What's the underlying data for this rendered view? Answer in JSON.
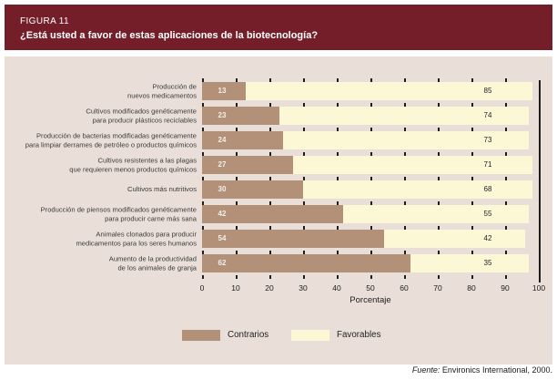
{
  "header": {
    "figure_label": "FIGURA 11",
    "title": "¿Está usted a favor de estas aplicaciones de la biotecnología?"
  },
  "chart_data": {
    "type": "bar",
    "orientation": "horizontal-stacked",
    "title": "¿Está usted a favor de estas aplicaciones de la biotecnología?",
    "categories": [
      [
        "Producción de",
        "nuevos medicamentos"
      ],
      [
        "Cultivos modificados genéticamente",
        "para producir plásticos reciclables"
      ],
      [
        "Producción de bacterias modificadas genéticamente",
        "para limpiar derrames de petróleo o productos químicos"
      ],
      [
        "Cultivos resistentes a las plagas",
        "que requieren menos productos químicos"
      ],
      [
        "Cultivos más nutritivos"
      ],
      [
        "Producción de piensos modificados genéticamente",
        "para producir carne más sana"
      ],
      [
        "Animales clonados para producir",
        "medicamentos para los seres humanos"
      ],
      [
        "Aumento de la productividad",
        "de los animales de granja"
      ]
    ],
    "series": [
      {
        "name": "Contrarios",
        "color": "#b39179",
        "values": [
          13,
          23,
          24,
          27,
          30,
          42,
          54,
          62
        ]
      },
      {
        "name": "Favorables",
        "color": "#fcf8d6",
        "values": [
          85,
          74,
          73,
          71,
          68,
          55,
          42,
          35
        ]
      }
    ],
    "xlabel": "Porcentaje",
    "xlim": [
      0,
      100
    ],
    "tick_labels": [
      "0",
      "10",
      "20",
      "30",
      "40",
      "50",
      "60",
      "70",
      "80",
      "90",
      "100"
    ],
    "grid": "dashed-vertical-every-10",
    "legend_position": "bottom"
  },
  "legend": {
    "items": [
      {
        "label": "Contrarios",
        "color": "#b39179"
      },
      {
        "label": "Favorables",
        "color": "#fcf8d6"
      }
    ]
  },
  "footer": {
    "source_label": "Fuente:",
    "source_text": "Environics International, 2000."
  },
  "colors": {
    "header_background": "#731e29",
    "panel_background": "#e9dfd8",
    "grid_line": "#1c1c1c",
    "contrarios_bar": "#b39179",
    "favorables_bar": "#fcf8d6"
  }
}
